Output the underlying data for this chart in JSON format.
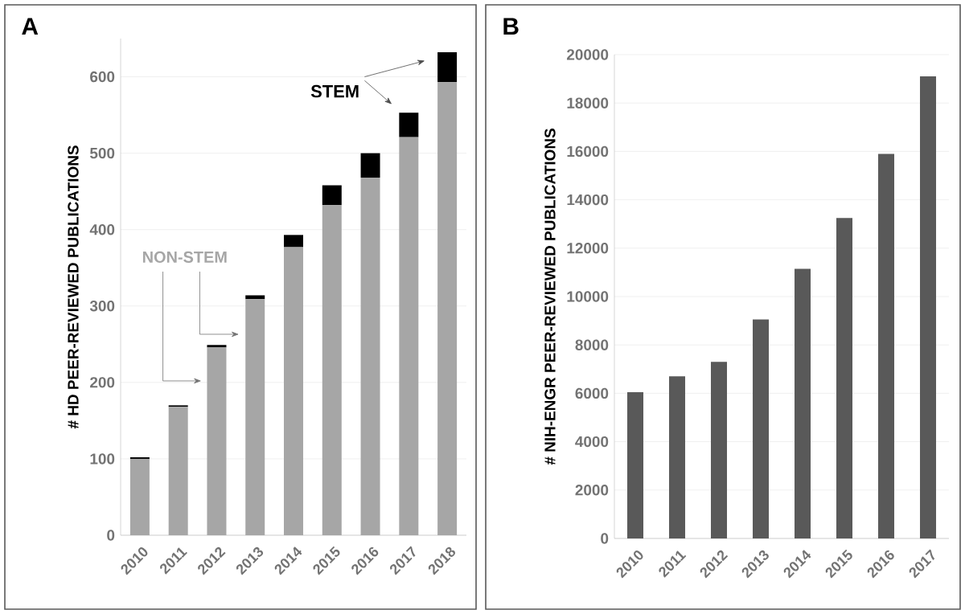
{
  "chart_data": [
    {
      "type": "bar",
      "title": "A",
      "ylabel": "# HD PEER-REVIEWED PUBLICATIONS",
      "stacked": true,
      "grid": "y",
      "categories": [
        "2010",
        "2011",
        "2012",
        "2013",
        "2014",
        "2015",
        "2016",
        "2017",
        "2018"
      ],
      "series": [
        {
          "name": "NON-STEM",
          "color": "#a6a6a6",
          "values": [
            100,
            168,
            246,
            309,
            377,
            432,
            468,
            521,
            593
          ]
        },
        {
          "name": "STEM",
          "color": "#000000",
          "values": [
            2,
            2,
            3,
            5,
            16,
            26,
            32,
            32,
            39
          ]
        }
      ],
      "ylim": [
        0,
        650
      ],
      "yticks": [
        0,
        100,
        200,
        300,
        400,
        500,
        600
      ]
    },
    {
      "type": "bar",
      "title": "B",
      "ylabel": "# NIH-ENGR PEER-REVIEWED PUBLICATIONS",
      "grid": "y",
      "categories": [
        "2010",
        "2011",
        "2012",
        "2013",
        "2014",
        "2015",
        "2016",
        "2017"
      ],
      "values": [
        6050,
        6700,
        7300,
        9050,
        11150,
        13250,
        15900,
        19100
      ],
      "color": "#595959",
      "ylim": [
        0,
        20000
      ],
      "yticks": [
        0,
        2000,
        4000,
        6000,
        8000,
        10000,
        12000,
        14000,
        16000,
        18000,
        20000
      ]
    }
  ]
}
